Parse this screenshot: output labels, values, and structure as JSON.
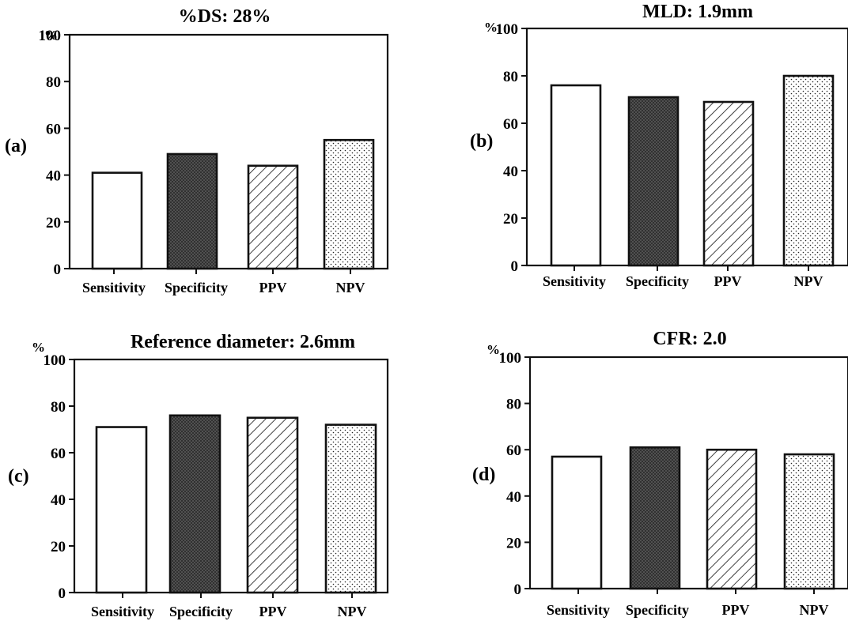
{
  "chart_data": [
    {
      "type": "bar",
      "panel_label": "(a)",
      "title": "%DS: 28%",
      "ylabel": "%",
      "categories": [
        "Sensitivity",
        "Specificity",
        "PPV",
        "NPV"
      ],
      "values": [
        41,
        49,
        44,
        55
      ],
      "ylim": [
        0,
        100
      ],
      "yticks": [
        "0",
        "20",
        "40",
        "60",
        "80",
        "100"
      ],
      "fills": [
        "blank",
        "crosshatch",
        "diagonal",
        "dots"
      ]
    },
    {
      "type": "bar",
      "panel_label": "(b)",
      "title": "MLD: 1.9mm",
      "ylabel": "%",
      "categories": [
        "Sensitivity",
        "Specificity",
        "PPV",
        "NPV"
      ],
      "values": [
        76,
        71,
        69,
        80
      ],
      "ylim": [
        0,
        100
      ],
      "yticks": [
        "0",
        "20",
        "40",
        "60",
        "80",
        "100"
      ],
      "fills": [
        "blank",
        "crosshatch",
        "diagonal",
        "dots"
      ]
    },
    {
      "type": "bar",
      "panel_label": "(c)",
      "title": "Reference diameter: 2.6mm",
      "ylabel": "%",
      "categories": [
        "Sensitivity",
        "Specificity",
        "PPV",
        "NPV"
      ],
      "values": [
        71,
        76,
        75,
        72
      ],
      "ylim": [
        0,
        100
      ],
      "yticks": [
        "0",
        "20",
        "40",
        "60",
        "80",
        "100"
      ],
      "fills": [
        "blank",
        "crosshatch",
        "diagonal",
        "dots"
      ]
    },
    {
      "type": "bar",
      "panel_label": "(d)",
      "title": "CFR: 2.0",
      "ylabel": "%",
      "categories": [
        "Sensitivity",
        "Specificity",
        "PPV",
        "NPV"
      ],
      "values": [
        57,
        61,
        60,
        58
      ],
      "ylim": [
        0,
        100
      ],
      "yticks": [
        "0",
        "20",
        "40",
        "60",
        "80",
        "100"
      ],
      "fills": [
        "blank",
        "crosshatch",
        "diagonal",
        "dots"
      ]
    }
  ],
  "colors": {
    "ink": "#111111",
    "paper": "#ffffff",
    "crosshatch_fill": "#5a5a5a"
  }
}
